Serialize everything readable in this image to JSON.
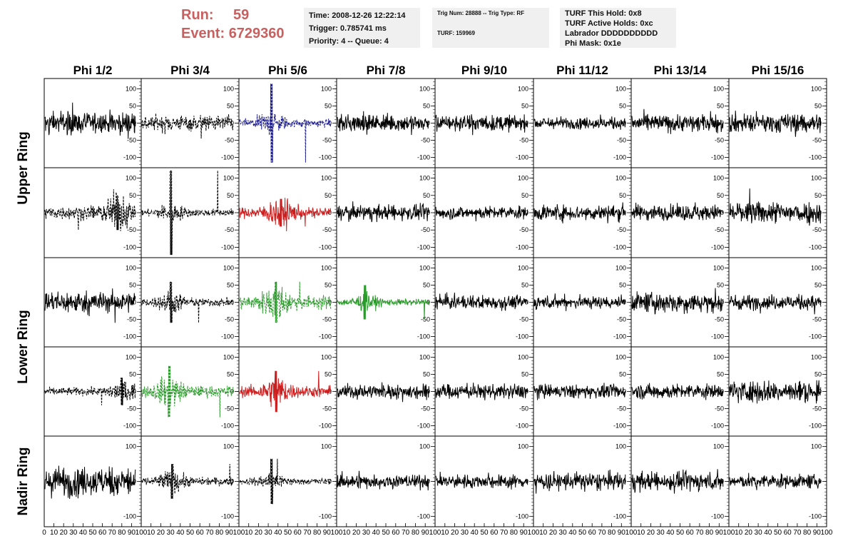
{
  "run_label": "Run:",
  "run_value": "59",
  "event_label": "Event:",
  "event_value": "6729360",
  "info_time": {
    "time": "Time: 2008-12-26 12:22:14",
    "trigger": "Trigger: 0.785741 ms",
    "priority": "Priority: 4 -- Queue: 4"
  },
  "info_trig": {
    "trig": "Trig Num: 28888 -- Trig Type: RF",
    "turf": "TURF: 159969"
  },
  "info_turf": {
    "hold": "TURF This Hold: 0x8",
    "active": "TURF Active Holds: 0xc",
    "labrador": "Labrador DDDDDDDDDD",
    "phimask": "Phi Mask: 0x1e"
  },
  "colors": {
    "black": "#000000",
    "blue": "#1f1f8f",
    "red": "#cc2020",
    "green": "#2a9a2a",
    "event_text": "#c96060",
    "box_bg": "#f0f0f0"
  },
  "chart_data": {
    "type": "line",
    "columns": [
      "Phi 1/2",
      "Phi 3/4",
      "Phi 5/6",
      "Phi 7/8",
      "Phi 9/10",
      "Phi 11/12",
      "Phi 13/14",
      "Phi 15/16"
    ],
    "rings": [
      {
        "label": "Upper Ring",
        "rows": [
          0,
          1
        ]
      },
      {
        "label": "Lower Ring",
        "rows": [
          2,
          3
        ]
      },
      {
        "label": "Nadir Ring",
        "rows": [
          4
        ]
      }
    ],
    "ylim": [
      -130,
      130
    ],
    "yticks": {
      "rows_0_3": [
        "100",
        "50",
        "0",
        "-50",
        "-100"
      ],
      "row_4": [
        "100",
        "0",
        "-100"
      ]
    },
    "xlim": [
      0,
      100
    ],
    "xtick_labels": [
      "0",
      "10",
      "20",
      "30",
      "40",
      "50",
      "60",
      "70",
      "80",
      "90",
      "100"
    ],
    "traces": [
      [
        {
          "color": "black",
          "dashed": false,
          "amp": 22,
          "peak": 60
        },
        {
          "color": "black",
          "dashed": true,
          "amp": 16,
          "peak": 45
        },
        {
          "color": "blue",
          "dashed": true,
          "amp": 18,
          "peak": 115,
          "center": 35
        },
        {
          "color": "black",
          "dashed": false,
          "amp": 18,
          "peak": 35
        },
        {
          "color": "black",
          "dashed": false,
          "amp": 16,
          "peak": 35
        },
        {
          "color": "black",
          "dashed": false,
          "amp": 12,
          "peak": 25
        },
        {
          "color": "black",
          "dashed": false,
          "amp": 18,
          "peak": 35
        },
        {
          "color": "black",
          "dashed": false,
          "amp": 20,
          "peak": 40
        }
      ],
      [
        {
          "color": "black",
          "dashed": true,
          "amp": 30,
          "peak": 50,
          "center": 80
        },
        {
          "color": "black",
          "dashed": true,
          "amp": 16,
          "peak": 125,
          "center": 32
        },
        {
          "color": "red",
          "dashed": false,
          "amp": 25,
          "peak": 40,
          "center": 45
        },
        {
          "color": "black",
          "dashed": false,
          "amp": 15,
          "peak": 25
        },
        {
          "color": "black",
          "dashed": false,
          "amp": 13,
          "peak": 25
        },
        {
          "color": "black",
          "dashed": false,
          "amp": 16,
          "peak": 30
        },
        {
          "color": "black",
          "dashed": false,
          "amp": 16,
          "peak": 30
        },
        {
          "color": "black",
          "dashed": false,
          "amp": 22,
          "peak": 70
        }
      ],
      [
        {
          "color": "black",
          "dashed": false,
          "amp": 22,
          "peak": 60
        },
        {
          "color": "black",
          "dashed": true,
          "amp": 18,
          "peak": 60,
          "center": 32
        },
        {
          "color": "green",
          "dashed": true,
          "amp": 30,
          "peak": 60,
          "center": 40
        },
        {
          "color": "green",
          "dashed": false,
          "amp": 14,
          "peak": 50,
          "center": 30
        },
        {
          "color": "black",
          "dashed": false,
          "amp": 14,
          "peak": 25
        },
        {
          "color": "black",
          "dashed": false,
          "amp": 13,
          "peak": 25
        },
        {
          "color": "black",
          "dashed": false,
          "amp": 20,
          "peak": 35
        },
        {
          "color": "black",
          "dashed": false,
          "amp": 15,
          "peak": 35
        }
      ],
      [
        {
          "color": "black",
          "dashed": true,
          "amp": 18,
          "peak": 40,
          "center": 85
        },
        {
          "color": "green",
          "dashed": true,
          "amp": 25,
          "peak": 75,
          "center": 30
        },
        {
          "color": "red",
          "dashed": false,
          "amp": 25,
          "peak": 60,
          "center": 40
        },
        {
          "color": "black",
          "dashed": false,
          "amp": 15,
          "peak": 25
        },
        {
          "color": "black",
          "dashed": false,
          "amp": 15,
          "peak": 25
        },
        {
          "color": "black",
          "dashed": false,
          "amp": 14,
          "peak": 25
        },
        {
          "color": "black",
          "dashed": false,
          "amp": 15,
          "peak": 25
        },
        {
          "color": "black",
          "dashed": false,
          "amp": 22,
          "peak": 35
        }
      ],
      [
        {
          "color": "black",
          "dashed": false,
          "amp": 30,
          "peak": 50
        },
        {
          "color": "black",
          "dashed": true,
          "amp": 18,
          "peak": 50,
          "center": 33
        },
        {
          "color": "black",
          "dashed": true,
          "amp": 14,
          "peak": 65,
          "center": 35
        },
        {
          "color": "black",
          "dashed": false,
          "amp": 14,
          "peak": 30
        },
        {
          "color": "black",
          "dashed": false,
          "amp": 13,
          "peak": 25
        },
        {
          "color": "black",
          "dashed": false,
          "amp": 18,
          "peak": 35
        },
        {
          "color": "black",
          "dashed": false,
          "amp": 18,
          "peak": 35
        },
        {
          "color": "black",
          "dashed": false,
          "amp": 14,
          "peak": 25
        }
      ]
    ]
  }
}
